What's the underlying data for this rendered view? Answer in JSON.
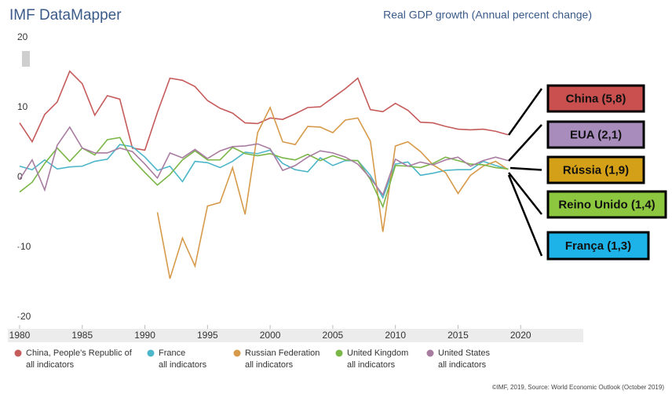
{
  "chart_data": {
    "type": "line",
    "brand": "IMF DataMapper",
    "title": "Real GDP growth (Annual percent change)",
    "x": [
      1980,
      1981,
      1982,
      1983,
      1984,
      1985,
      1986,
      1987,
      1988,
      1989,
      1990,
      1991,
      1992,
      1993,
      1994,
      1995,
      1996,
      1997,
      1998,
      1999,
      2000,
      2001,
      2002,
      2003,
      2004,
      2005,
      2006,
      2007,
      2008,
      2009,
      2010,
      2011,
      2012,
      2013,
      2014,
      2015,
      2016,
      2017,
      2018,
      2019
    ],
    "xlim": [
      1980,
      2025
    ],
    "xticks": [
      1980,
      1985,
      1990,
      1995,
      2000,
      2005,
      2010,
      2015,
      2020
    ],
    "ylim": [
      -20,
      20
    ],
    "yticks": [
      20,
      10,
      0,
      -10,
      -20
    ],
    "legend_sublabel": "all indicators",
    "series": [
      {
        "name": "China, People's Republic of",
        "color": "#c65b5b",
        "values": [
          7.8,
          5.1,
          9.0,
          10.8,
          15.2,
          13.4,
          8.9,
          11.7,
          11.2,
          4.2,
          3.9,
          9.3,
          14.2,
          13.9,
          13.0,
          11.0,
          9.9,
          9.2,
          7.8,
          7.7,
          8.5,
          8.3,
          9.1,
          10.0,
          10.1,
          11.4,
          12.7,
          14.2,
          9.7,
          9.4,
          10.6,
          9.6,
          7.9,
          7.8,
          7.3,
          6.9,
          6.8,
          6.9,
          6.6,
          6.1
        ]
      },
      {
        "name": "France",
        "color": "#4db6c9",
        "values": [
          1.6,
          1.1,
          2.5,
          1.2,
          1.5,
          1.6,
          2.3,
          2.6,
          4.7,
          4.4,
          2.9,
          1.0,
          1.6,
          -0.6,
          2.3,
          2.1,
          1.4,
          2.3,
          3.6,
          3.4,
          3.9,
          2.0,
          1.1,
          0.8,
          2.8,
          1.7,
          2.4,
          2.4,
          0.3,
          -2.9,
          1.9,
          2.2,
          0.3,
          0.6,
          1.0,
          1.1,
          1.1,
          2.3,
          1.7,
          1.2
        ]
      },
      {
        "name": "Russian Federation",
        "color": "#d69a4a",
        "values": [
          null,
          null,
          null,
          null,
          null,
          null,
          null,
          null,
          null,
          null,
          null,
          -5.0,
          -14.5,
          -8.7,
          -12.7,
          -4.1,
          -3.6,
          1.4,
          -5.3,
          6.4,
          10.0,
          5.1,
          4.7,
          7.3,
          7.2,
          6.4,
          8.2,
          8.5,
          5.2,
          -7.8,
          4.5,
          5.1,
          3.7,
          1.8,
          0.7,
          -2.3,
          0.3,
          1.6,
          2.3,
          1.1
        ]
      },
      {
        "name": "United Kingdom",
        "color": "#7ab648",
        "values": [
          -2.1,
          -0.7,
          2.0,
          4.2,
          2.3,
          4.2,
          3.2,
          5.4,
          5.7,
          2.6,
          0.7,
          -1.1,
          0.4,
          2.5,
          3.8,
          2.5,
          2.5,
          4.3,
          3.4,
          3.1,
          3.4,
          2.8,
          2.5,
          3.3,
          2.4,
          3.1,
          2.5,
          2.4,
          -0.3,
          -4.2,
          1.7,
          1.6,
          1.4,
          2.0,
          2.9,
          2.4,
          1.9,
          1.8,
          1.4,
          1.2
        ]
      },
      {
        "name": "United States",
        "color": "#a87ca0",
        "values": [
          -0.3,
          2.5,
          -1.8,
          4.6,
          7.2,
          4.2,
          3.5,
          3.5,
          4.2,
          3.7,
          1.9,
          -0.1,
          3.5,
          2.8,
          4.0,
          2.7,
          3.8,
          4.4,
          4.5,
          4.8,
          4.1,
          1.0,
          1.7,
          2.9,
          3.8,
          3.5,
          2.9,
          1.9,
          -0.1,
          -2.5,
          2.6,
          1.6,
          2.2,
          1.8,
          2.5,
          2.9,
          1.6,
          2.4,
          2.9,
          2.4
        ]
      }
    ],
    "annotations": [
      {
        "text": "China (5,8)",
        "color": "#c9504f"
      },
      {
        "text": "EUA (2,1)",
        "color": "#a88cbc"
      },
      {
        "text": "Rússia (1,9)",
        "color": "#d4a017"
      },
      {
        "text": "Reino Unido (1,4)",
        "color": "#8dc63f"
      },
      {
        "text": "França (1,3)",
        "color": "#1eb3e8"
      }
    ],
    "source": "©IMF, 2019, Source: World Economic Outlook (October 2019)"
  }
}
